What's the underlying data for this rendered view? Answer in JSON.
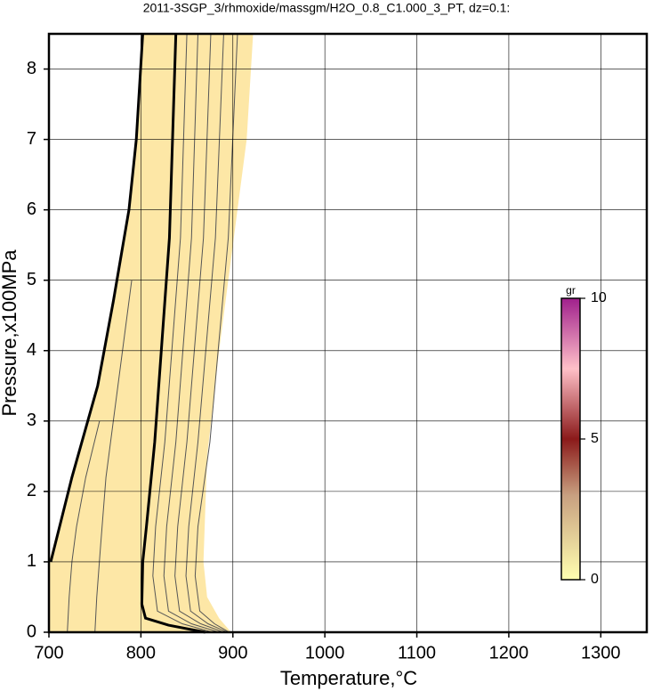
{
  "chart_data": {
    "type": "contour",
    "title": "2011-3SGP_3/rhmoxide/massgm/H2O_0.8_C1.000_3_PT, dz=0.1:",
    "xlabel": "Temperature,°C",
    "ylabel": "Pressure,x100MPa",
    "xlim": [
      700,
      1350
    ],
    "ylim": [
      0,
      8.5
    ],
    "xticks": [
      700,
      800,
      900,
      1000,
      1100,
      1200,
      1300
    ],
    "yticks": [
      0,
      1,
      2,
      3,
      4,
      5,
      6,
      7,
      8
    ],
    "grid": true,
    "region": {
      "color": "#fde7a6",
      "x": [
        700,
        700,
        725,
        753,
        770,
        787,
        795,
        802,
        922,
        915,
        900,
        885,
        872,
        868,
        872,
        885,
        898
      ],
      "y": [
        0,
        1.0,
        2.2,
        3.5,
        4.7,
        6.0,
        7.0,
        8.5,
        8.5,
        7.0,
        5.5,
        4.0,
        2.5,
        1.0,
        0.5,
        0.2,
        0
      ]
    },
    "series": [
      {
        "color": "#000000",
        "width": 3,
        "x": [
          702,
          725,
          753,
          770,
          787,
          795,
          802
        ],
        "y": [
          1.0,
          2.2,
          3.5,
          4.7,
          6.0,
          7.0,
          8.5
        ]
      },
      {
        "color": "#000000",
        "width": 3,
        "x": [
          838,
          831,
          815,
          806,
          802,
          801,
          805,
          830,
          870
        ],
        "y": [
          8.5,
          5.6,
          2.7,
          1.5,
          1.0,
          0.4,
          0.2,
          0.1,
          0
        ]
      },
      {
        "color": "#555555",
        "width": 1,
        "x": [
          850,
          843,
          826,
          816,
          813,
          818,
          845,
          878
        ],
        "y": [
          8.5,
          5.6,
          2.7,
          1.5,
          0.8,
          0.3,
          0.12,
          0
        ]
      },
      {
        "color": "#555555",
        "width": 1,
        "x": [
          862,
          855,
          838,
          828,
          825,
          830,
          855,
          885
        ],
        "y": [
          8.5,
          5.6,
          2.7,
          1.5,
          0.8,
          0.3,
          0.12,
          0
        ]
      },
      {
        "color": "#555555",
        "width": 1,
        "x": [
          876,
          868,
          850,
          840,
          837,
          842,
          865,
          890
        ],
        "y": [
          8.5,
          5.6,
          2.7,
          1.5,
          0.8,
          0.3,
          0.12,
          0
        ]
      },
      {
        "color": "#555555",
        "width": 1,
        "x": [
          890,
          881,
          862,
          852,
          849,
          854,
          873,
          894
        ],
        "y": [
          8.5,
          5.6,
          2.7,
          1.5,
          0.8,
          0.3,
          0.12,
          0
        ]
      },
      {
        "color": "#555555",
        "width": 1,
        "x": [
          905,
          895,
          875,
          862,
          859,
          864,
          880,
          896
        ],
        "y": [
          8.5,
          5.6,
          2.7,
          1.5,
          0.8,
          0.3,
          0.12,
          0
        ]
      },
      {
        "color": "#555555",
        "width": 1,
        "x": [
          755,
          740,
          730,
          725,
          722,
          720
        ],
        "y": [
          3.0,
          2.2,
          1.5,
          1.0,
          0.5,
          0
        ]
      },
      {
        "color": "#555555",
        "width": 1,
        "x": [
          790,
          775,
          762,
          756,
          752,
          750
        ],
        "y": [
          5.0,
          3.5,
          2.2,
          1.2,
          0.5,
          0
        ]
      }
    ],
    "colorbar": {
      "label": "gr",
      "lim": [
        0,
        10
      ],
      "ticks": [
        0,
        5,
        10
      ]
    }
  }
}
